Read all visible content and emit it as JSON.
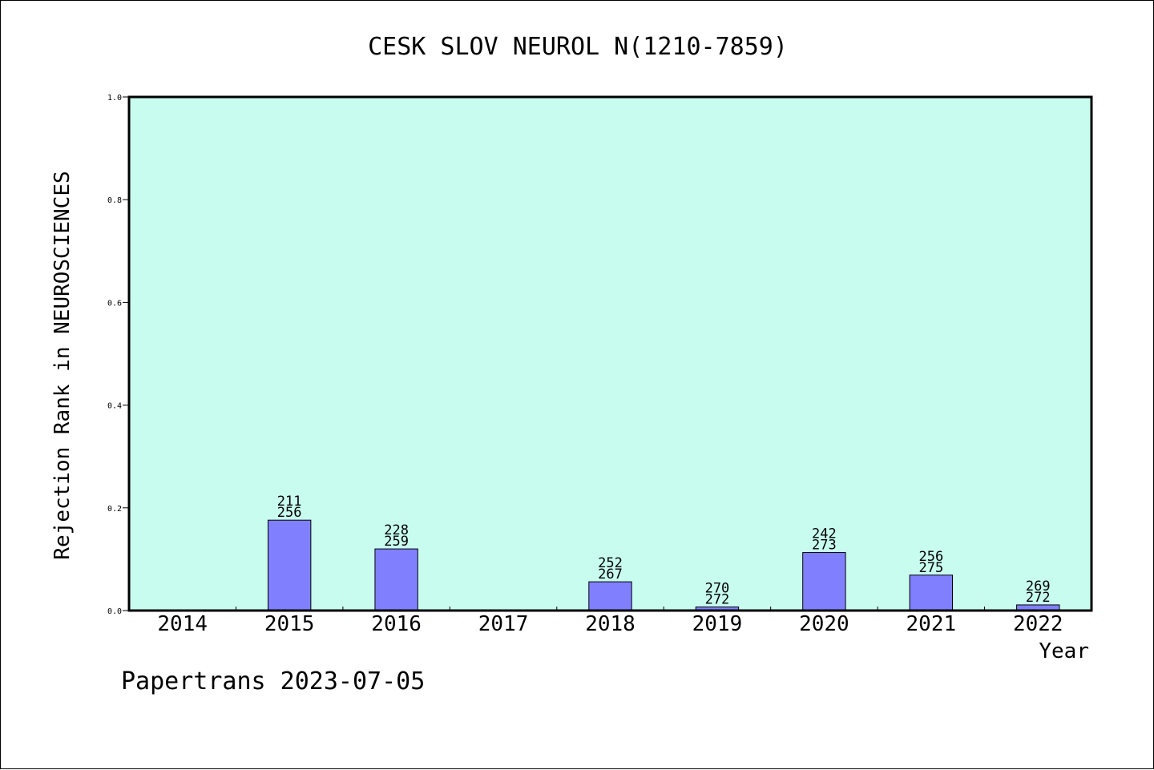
{
  "chart_data": {
    "type": "bar",
    "title": "CESK SLOV NEUROL N(1210-7859)",
    "xlabel": "Year",
    "ylabel": "Rejection Rank in NEUROSCIENCES",
    "ylim": [
      0,
      1.0
    ],
    "yticks": [
      "0.0",
      "0.2",
      "0.4",
      "0.6",
      "0.8",
      "1.0"
    ],
    "categories": [
      "2014",
      "2015",
      "2016",
      "2017",
      "2018",
      "2019",
      "2020",
      "2021",
      "2022"
    ],
    "values": [
      null,
      0.176,
      0.12,
      null,
      0.056,
      0.007,
      0.113,
      0.069,
      0.011
    ],
    "labels": [
      null,
      [
        "211",
        "256"
      ],
      [
        "228",
        "259"
      ],
      null,
      [
        "252",
        "267"
      ],
      [
        "270",
        "272"
      ],
      [
        "242",
        "273"
      ],
      [
        "256",
        "275"
      ],
      [
        "269",
        "272"
      ]
    ],
    "grid": false,
    "colors": {
      "plot_bg": "#c8fcef",
      "bar": "#8080ff",
      "axis": "#000000"
    }
  },
  "footer": "Papertrans 2023-07-05"
}
